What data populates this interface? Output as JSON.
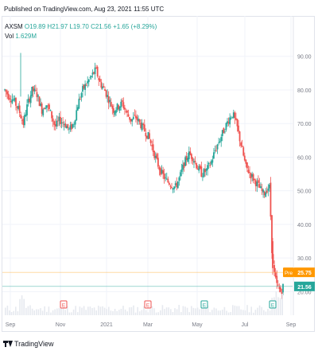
{
  "header": {
    "published": "Published on TradingView.com, Aug 23, 2021 11:55 UTC"
  },
  "legend": {
    "symbol": "AXSM",
    "ohlc": "O19.89  H21.97  L19.70  C21.56  +1.65 (+8.29%)",
    "volume_label": "Vol",
    "volume_value": "1.629M"
  },
  "footer": {
    "brand": "TradingView"
  },
  "colors": {
    "up": "#26a69a",
    "down": "#ef5350",
    "pre_badge": "#ff9800",
    "price_badge": "#26a69a",
    "grid": "#f0f3fa"
  },
  "chart_data": {
    "type": "candlestick",
    "symbol": "AXSM",
    "x_ticks": [
      "Sep",
      "Nov",
      "2021",
      "Mar",
      "May",
      "Jul",
      "Sep"
    ],
    "y_ticks": [
      "90.00",
      "80.00",
      "70.00",
      "60.00",
      "50.00",
      "40.00",
      "30.00",
      "20.00"
    ],
    "ylim": [
      13,
      102
    ],
    "grid": true,
    "badges": {
      "pre_label": "Pre",
      "pre_value": "25.75",
      "last_value": "21.56"
    },
    "close_path": [
      [
        0,
        80
      ],
      [
        5,
        78
      ],
      [
        10,
        77
      ],
      [
        16,
        74
      ],
      [
        21,
        70
      ],
      [
        26,
        76
      ],
      [
        31,
        80
      ],
      [
        36,
        79
      ],
      [
        42,
        74
      ],
      [
        47,
        76
      ],
      [
        52,
        73
      ],
      [
        57,
        69
      ],
      [
        62,
        71
      ],
      [
        68,
        70
      ],
      [
        73,
        68
      ],
      [
        78,
        70
      ],
      [
        83,
        76
      ],
      [
        88,
        80
      ],
      [
        93,
        82
      ],
      [
        98,
        84
      ],
      [
        103,
        86
      ],
      [
        108,
        82
      ],
      [
        113,
        80
      ],
      [
        118,
        77
      ],
      [
        123,
        74
      ],
      [
        128,
        75
      ],
      [
        133,
        76
      ],
      [
        138,
        73
      ],
      [
        143,
        71
      ],
      [
        148,
        72
      ],
      [
        153,
        70
      ],
      [
        158,
        68
      ],
      [
        163,
        66
      ],
      [
        168,
        62
      ],
      [
        173,
        58
      ],
      [
        178,
        55
      ],
      [
        183,
        53
      ],
      [
        188,
        52
      ],
      [
        193,
        51
      ],
      [
        198,
        54
      ],
      [
        203,
        58
      ],
      [
        208,
        61
      ],
      [
        213,
        60
      ],
      [
        218,
        57
      ],
      [
        223,
        55
      ],
      [
        228,
        56
      ],
      [
        233,
        58
      ],
      [
        238,
        62
      ],
      [
        243,
        65
      ],
      [
        248,
        68
      ],
      [
        253,
        71
      ],
      [
        258,
        73
      ],
      [
        263,
        69
      ],
      [
        268,
        63
      ],
      [
        273,
        57
      ],
      [
        278,
        55
      ],
      [
        283,
        53
      ],
      [
        288,
        51
      ],
      [
        293,
        49
      ],
      [
        298,
        51
      ],
      [
        300,
        51
      ],
      [
        302,
        34
      ],
      [
        304,
        27
      ],
      [
        306,
        24
      ],
      [
        308,
        22
      ],
      [
        310,
        21
      ],
      [
        312,
        20
      ],
      [
        313,
        20
      ],
      [
        315,
        21.56
      ]
    ],
    "close_path_note": "",
    "events": [
      {
        "label": "E",
        "color": "#ef5350",
        "pos": "Oct 2020"
      },
      {
        "label": "E",
        "color": "#ef5350",
        "pos": "Mar 2021"
      },
      {
        "label": "E",
        "color": "#26a69a",
        "pos": "May 2021"
      },
      {
        "label": "E",
        "color": "#26a69a",
        "pos": "Aug 2021"
      }
    ]
  }
}
